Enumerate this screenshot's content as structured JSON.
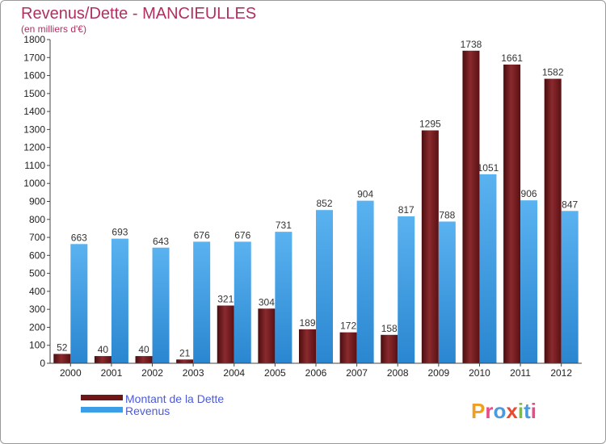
{
  "chart_data": {
    "type": "bar",
    "title": "Revenus/Dette - MANCIEULLES",
    "subtitle": "(en milliers d'€)",
    "categories": [
      "2000",
      "2001",
      "2002",
      "2003",
      "2004",
      "2005",
      "2006",
      "2007",
      "2008",
      "2009",
      "2010",
      "2011",
      "2012"
    ],
    "series": [
      {
        "name": "Montant de la Dette",
        "color": "#6e1518",
        "values": [
          52,
          40,
          40,
          21,
          321,
          304,
          189,
          172,
          158,
          1295,
          1738,
          1661,
          1582
        ]
      },
      {
        "name": "Revenus",
        "color": "#3d9ee8",
        "values": [
          663,
          693,
          643,
          676,
          676,
          731,
          852,
          904,
          817,
          788,
          1051,
          906,
          847
        ]
      }
    ],
    "ylim": [
      0,
      1800
    ],
    "ytick_step": 100,
    "grid": false,
    "legend_position": "bottom-left"
  },
  "logo": {
    "text": "Proxiti"
  }
}
